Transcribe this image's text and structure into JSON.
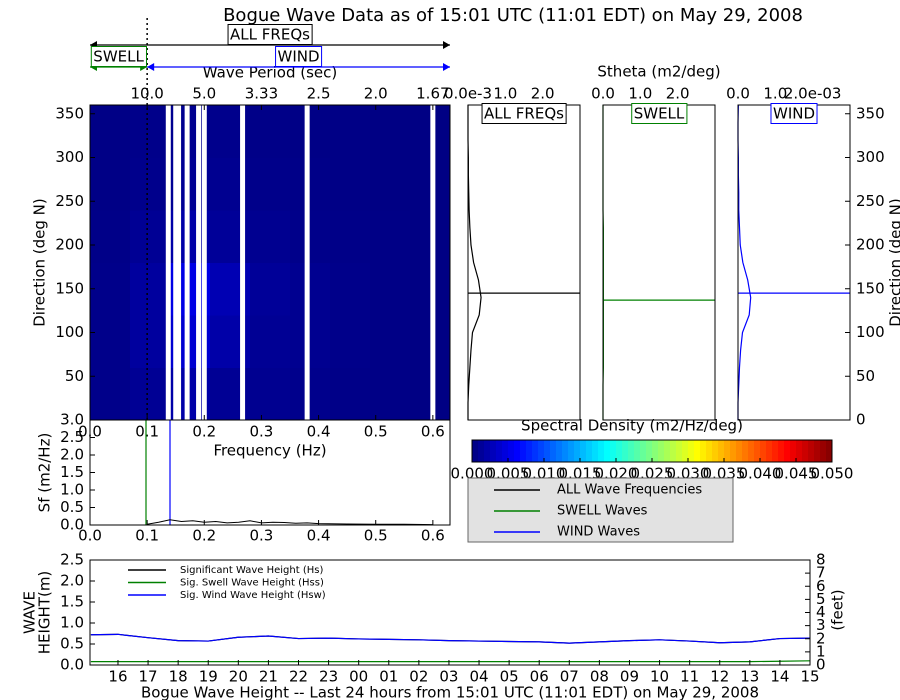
{
  "title": "Bogue Wave Data as of 15:01 UTC (11:01 EDT) on May 29, 2008",
  "stheta_label": "Stheta (m2/deg)",
  "legend": {
    "entries": [
      "ALL Wave Frequencies",
      "SWELL Waves",
      "WIND Waves"
    ],
    "colors": [
      "#000000",
      "#008000",
      "#0000ff"
    ]
  },
  "chart_data": [
    {
      "type": "heatmap",
      "xlabel": "Frequency (Hz)",
      "ylabel": "Direction (deg N)",
      "x2label": "Wave Period (sec)",
      "xlim": [
        0,
        0.63
      ],
      "ylim": [
        0,
        360
      ],
      "xticks": [
        {
          "value": 0,
          "label": "0.0"
        },
        0.1,
        0.2,
        0.3,
        0.4,
        0.5,
        0.6
      ],
      "x2ticks": [
        {
          "value": 0.1,
          "label": "10.0"
        },
        {
          "value": 0.2,
          "label": "5.0"
        },
        {
          "value": 0.3,
          "label": "3.33"
        },
        {
          "value": 0.4,
          "label": "2.5"
        },
        {
          "value": 0.5,
          "label": "2.0"
        },
        {
          "value": 0.6,
          "label": "1.67"
        }
      ],
      "yticks": [
        50,
        100,
        150,
        200,
        250,
        300,
        350
      ],
      "xbins": [
        0,
        0.07,
        0.14,
        0.21,
        0.28,
        0.35,
        0.42,
        0.49,
        0.56,
        0.63
      ],
      "ybins": [
        0,
        60,
        120,
        180,
        240,
        300,
        360
      ],
      "values": [
        [
          0.0005,
          0.001,
          0.002,
          0.001,
          0.0008,
          0.0006,
          0.0004,
          0.0003,
          0.0002
        ],
        [
          0.0005,
          0.0015,
          0.004,
          0.002,
          0.001,
          0.0008,
          0.0005,
          0.0003,
          0.0002
        ],
        [
          0.0005,
          0.0015,
          0.005,
          0.0025,
          0.0012,
          0.0008,
          0.0005,
          0.0003,
          0.0002
        ],
        [
          0.0004,
          0.001,
          0.002,
          0.0012,
          0.0008,
          0.0005,
          0.0004,
          0.0003,
          0.0002
        ],
        [
          0.0003,
          0.0006,
          0.001,
          0.0008,
          0.0005,
          0.0004,
          0.0003,
          0.0002,
          0.0002
        ],
        [
          0.0003,
          0.0005,
          0.0008,
          0.0006,
          0.0004,
          0.0003,
          0.0003,
          0.0002,
          0.0002
        ]
      ],
      "missing_frequencies": [
        0.137,
        0.15,
        0.155,
        0.17,
        0.19,
        0.2,
        0.267,
        0.38,
        0.6
      ],
      "separation_frequency": 0.1,
      "all_label": "ALL FREQs",
      "swell_label": "SWELL",
      "wind_label": "WIND",
      "colorbar_label": "Spectral Density (m2/Hz/deg)",
      "clim": [
        0,
        0.05
      ],
      "cticks": [
        {
          "value": 0,
          "label": "0.000"
        },
        0.005,
        {
          "value": 0.01,
          "label": "0.010"
        },
        0.015,
        {
          "value": 0.02,
          "label": "0.020"
        },
        0.025,
        {
          "value": 0.03,
          "label": "0.030"
        },
        0.035,
        {
          "value": 0.04,
          "label": "0.040"
        },
        0.045,
        {
          "value": 0.05,
          "label": "0.050"
        }
      ]
    },
    {
      "type": "profile",
      "label": "ALL FREQs",
      "color": "#000000",
      "xlim": [
        0,
        3
      ],
      "ylim": [
        0,
        360
      ],
      "xticks": [
        {
          "value": 0,
          "label": "0.0e-3"
        },
        {
          "value": 1,
          "label": "1.0"
        },
        {
          "value": 2,
          "label": "2.0"
        }
      ],
      "y": [
        0,
        20,
        40,
        60,
        80,
        100,
        120,
        140,
        160,
        180,
        200,
        220,
        240,
        260,
        280,
        300,
        320,
        340,
        360
      ],
      "values": [
        0,
        0,
        0.02,
        0.05,
        0.08,
        0.12,
        0.3,
        0.35,
        0.28,
        0.15,
        0.08,
        0.05,
        0.03,
        0.02,
        0.01,
        0.01,
        0,
        0,
        0
      ],
      "mean_direction": 145
    },
    {
      "type": "profile",
      "label": "SWELL",
      "color": "#008000",
      "xlim": [
        0,
        3
      ],
      "ylim": [
        0,
        360
      ],
      "xticks": [
        {
          "value": 0,
          "label": "0.0"
        },
        {
          "value": 1,
          "label": "1.0"
        },
        {
          "value": 2,
          "label": "2.0"
        }
      ],
      "y": [
        0,
        20,
        40,
        60,
        80,
        100,
        120,
        140,
        160,
        180,
        200,
        220,
        240,
        260,
        280,
        300,
        320,
        340,
        360
      ],
      "values": [
        0,
        0,
        0,
        0.01,
        0.01,
        0.01,
        0.01,
        0.01,
        0.01,
        0.01,
        0.01,
        0.01,
        0,
        0,
        0,
        0,
        0,
        0,
        0
      ],
      "mean_direction": 137
    },
    {
      "type": "profile",
      "label": "WIND",
      "color": "#0000ff",
      "xlim": [
        0,
        3
      ],
      "ylim": [
        0,
        360
      ],
      "xticks": [
        {
          "value": 0,
          "label": "0.0"
        },
        {
          "value": 1,
          "label": "1.0"
        },
        {
          "value": 2,
          "label": "2.0e-03"
        }
      ],
      "y2label": "Direction (deg N)",
      "y2ticks": [
        0,
        50,
        100,
        150,
        200,
        250,
        300,
        350
      ],
      "y": [
        0,
        20,
        40,
        60,
        80,
        100,
        120,
        140,
        160,
        180,
        200,
        220,
        240,
        260,
        280,
        300,
        320,
        340,
        360
      ],
      "values": [
        0,
        0,
        0.02,
        0.04,
        0.07,
        0.12,
        0.3,
        0.34,
        0.26,
        0.13,
        0.06,
        0.04,
        0.02,
        0.02,
        0.01,
        0.01,
        0,
        0,
        0.01
      ],
      "mean_direction": 145
    },
    {
      "type": "spectrum",
      "ylabel": "Sf (m2/Hz)",
      "xlim": [
        0,
        0.63
      ],
      "ylim": [
        0,
        3
      ],
      "xticks": [
        {
          "value": 0,
          "label": "0.0"
        },
        0.1,
        0.2,
        0.3,
        0.4,
        0.5,
        0.6
      ],
      "yticks": [
        {
          "value": 0,
          "label": "0.0"
        },
        0.5,
        {
          "value": 1,
          "label": "1.0"
        },
        1.5,
        {
          "value": 2,
          "label": "2.0"
        },
        2.5,
        {
          "value": 3,
          "label": "3.0"
        }
      ],
      "x": [
        0.1,
        0.12,
        0.14,
        0.16,
        0.18,
        0.2,
        0.22,
        0.24,
        0.26,
        0.28,
        0.3,
        0.32,
        0.34,
        0.36,
        0.38,
        0.4,
        0.45,
        0.5,
        0.55,
        0.6
      ],
      "values": [
        0.02,
        0.08,
        0.15,
        0.1,
        0.12,
        0.08,
        0.1,
        0.06,
        0.08,
        0.12,
        0.06,
        0.08,
        0.07,
        0.05,
        0.06,
        0.04,
        0.03,
        0.02,
        0.02,
        0.01
      ],
      "color": "#000000",
      "swell_peak": 0.098,
      "swell_color": "#008000",
      "wind_peak": 0.14,
      "wind_color": "#0000ff"
    },
    {
      "type": "line",
      "ylabel": [
        "WAVE",
        "HEIGHT(m)"
      ],
      "y2label": "(feet)",
      "xlabel": "Bogue Wave Height -- Last 24 hours from 15:01 UTC (11:01 EDT) on May 29, 2008",
      "xlim": [
        -0.93,
        23
      ],
      "ylim": [
        0,
        2.5
      ],
      "y2lim": [
        0,
        8
      ],
      "xticks": [
        {
          "value": 0,
          "label": "16"
        },
        {
          "value": 1,
          "label": "17"
        },
        {
          "value": 2,
          "label": "18"
        },
        {
          "value": 3,
          "label": "19"
        },
        {
          "value": 4,
          "label": "20"
        },
        {
          "value": 5,
          "label": "21"
        },
        {
          "value": 6,
          "label": "22"
        },
        {
          "value": 7,
          "label": "23"
        },
        {
          "value": 8,
          "label": "00"
        },
        {
          "value": 9,
          "label": "01"
        },
        {
          "value": 10,
          "label": "02"
        },
        {
          "value": 11,
          "label": "03"
        },
        {
          "value": 12,
          "label": "04"
        },
        {
          "value": 13,
          "label": "05"
        },
        {
          "value": 14,
          "label": "06"
        },
        {
          "value": 15,
          "label": "07"
        },
        {
          "value": 16,
          "label": "08"
        },
        {
          "value": 17,
          "label": "09"
        },
        {
          "value": 18,
          "label": "10"
        },
        {
          "value": 19,
          "label": "11"
        },
        {
          "value": 20,
          "label": "12"
        },
        {
          "value": 21,
          "label": "13"
        },
        {
          "value": 22,
          "label": "14"
        },
        {
          "value": 23,
          "label": "15"
        }
      ],
      "yticks": [
        {
          "value": 0,
          "label": "0.0"
        },
        0.5,
        {
          "value": 1,
          "label": "1.0"
        },
        1.5,
        {
          "value": 2,
          "label": "2.0"
        },
        2.5
      ],
      "y2ticks": [
        0,
        1,
        2,
        3,
        4,
        5,
        6,
        7,
        8
      ],
      "x": [
        -0.9,
        0,
        1,
        2,
        3,
        4,
        5,
        6,
        7,
        8,
        9,
        10,
        11,
        12,
        13,
        14,
        15,
        16,
        17,
        18,
        19,
        20,
        21,
        22,
        23
      ],
      "series": [
        {
          "name": "Significant Wave Height (Hs)",
          "color": "#000000",
          "values": [
            0.72,
            0.73,
            0.65,
            0.58,
            0.57,
            0.66,
            0.69,
            0.63,
            0.64,
            0.62,
            0.61,
            0.6,
            0.58,
            0.57,
            0.56,
            0.55,
            0.52,
            0.55,
            0.58,
            0.6,
            0.57,
            0.53,
            0.55,
            0.63,
            0.64
          ]
        },
        {
          "name": "Sig. Swell Wave Height (Hss)",
          "color": "#008000",
          "values": [
            0.08,
            0.08,
            0.08,
            0.08,
            0.08,
            0.08,
            0.08,
            0.08,
            0.08,
            0.08,
            0.08,
            0.08,
            0.08,
            0.08,
            0.08,
            0.08,
            0.08,
            0.08,
            0.08,
            0.08,
            0.08,
            0.08,
            0.08,
            0.09,
            0.1
          ]
        },
        {
          "name": "Sig. Wind Wave Height (Hsw)",
          "color": "#0000ff",
          "values": [
            0.72,
            0.73,
            0.65,
            0.58,
            0.57,
            0.66,
            0.69,
            0.63,
            0.64,
            0.62,
            0.61,
            0.6,
            0.58,
            0.57,
            0.56,
            0.55,
            0.52,
            0.55,
            0.58,
            0.6,
            0.57,
            0.53,
            0.55,
            0.63,
            0.64
          ]
        }
      ]
    }
  ]
}
